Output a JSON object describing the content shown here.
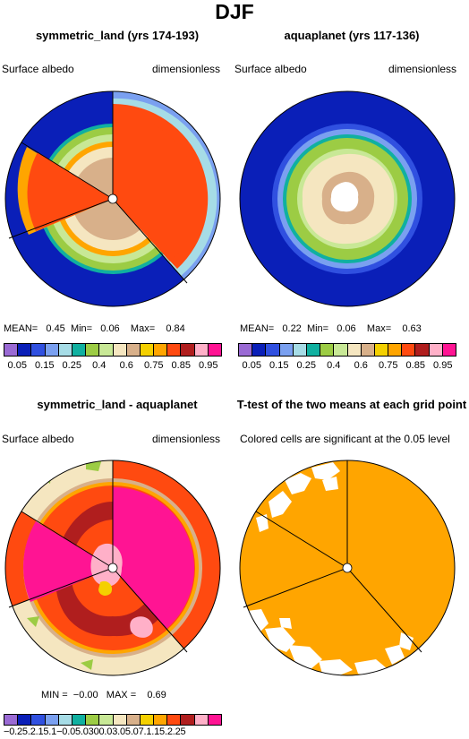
{
  "title": "DJF",
  "panels": [
    {
      "id": "p1",
      "title": "symmetric_land (yrs 174-193)",
      "left_label": "Surface albedo",
      "right_label": "dimensionless",
      "stats": {
        "mean_label": "MEAN=",
        "mean": "0.45",
        "min_label": "Min=",
        "min": "0.06",
        "max_label": "Max=",
        "max": "0.84"
      }
    },
    {
      "id": "p2",
      "title": "aquaplanet (yrs 117-136)",
      "left_label": "Surface albedo",
      "right_label": "dimensionless",
      "stats": {
        "mean_label": "MEAN=",
        "mean": "0.22",
        "min_label": "Min=",
        "min": "0.06",
        "max_label": "Max=",
        "max": "0.63"
      }
    },
    {
      "id": "p3",
      "title": "symmetric_land - aquaplanet",
      "left_label": "Surface albedo",
      "right_label": "dimensionless",
      "stats": {
        "min_label": "MIN =",
        "min": "−0.00",
        "max_label": "MAX =",
        "max": "0.69"
      }
    },
    {
      "id": "p4",
      "title": "T-test of the two means at each grid point",
      "subtitle": "Colored cells are significant at the 0.05 level"
    }
  ],
  "colorbars": {
    "main": {
      "colors": [
        "#9a6ad4",
        "#0a1fb8",
        "#3050e0",
        "#7aa0f0",
        "#a6dce6",
        "#10b0a0",
        "#9ccc44",
        "#c8e896",
        "#f5e6c0",
        "#d8b08a",
        "#f4d000",
        "#ffa500",
        "#ff4a10",
        "#b01e1e",
        "#ffb0c8",
        "#ff1493"
      ],
      "ticks": [
        "0.05",
        "0.15",
        "0.25",
        "0.4",
        "0.6",
        "0.75",
        "0.85",
        "0.95"
      ]
    },
    "diff": {
      "colors": [
        "#9a6ad4",
        "#0a1fb8",
        "#3050e0",
        "#7aa0f0",
        "#a6dce6",
        "#10b0a0",
        "#9ccc44",
        "#c8e896",
        "#f5e6c0",
        "#d8b08a",
        "#f4d000",
        "#ffa500",
        "#ff4a10",
        "#b01e1e",
        "#ffb0c8",
        "#ff1493"
      ],
      "tick_text": "−0.25.2.15.1−0.05.0300.03.05.07.1.15.2.25"
    }
  },
  "chart_data": [
    {
      "type": "heatmap",
      "title": "symmetric_land (yrs 174-193)",
      "variable": "Surface albedo",
      "units": "dimensionless",
      "projection": "polar",
      "colorbar_ticks": [
        0.05,
        0.15,
        0.25,
        0.4,
        0.6,
        0.75,
        0.85,
        0.95
      ],
      "mean": 0.45,
      "min": 0.06,
      "max": 0.84
    },
    {
      "type": "heatmap",
      "title": "aquaplanet (yrs 117-136)",
      "variable": "Surface albedo",
      "units": "dimensionless",
      "projection": "polar",
      "colorbar_ticks": [
        0.05,
        0.15,
        0.25,
        0.4,
        0.6,
        0.75,
        0.85,
        0.95
      ],
      "mean": 0.22,
      "min": 0.06,
      "max": 0.63
    },
    {
      "type": "heatmap",
      "title": "symmetric_land - aquaplanet",
      "variable": "Surface albedo",
      "units": "dimensionless",
      "projection": "polar",
      "min": -0.0,
      "max": 0.69
    },
    {
      "type": "heatmap",
      "title": "T-test of the two means at each grid point",
      "subtitle": "Colored cells are significant at the 0.05 level",
      "projection": "polar"
    }
  ]
}
